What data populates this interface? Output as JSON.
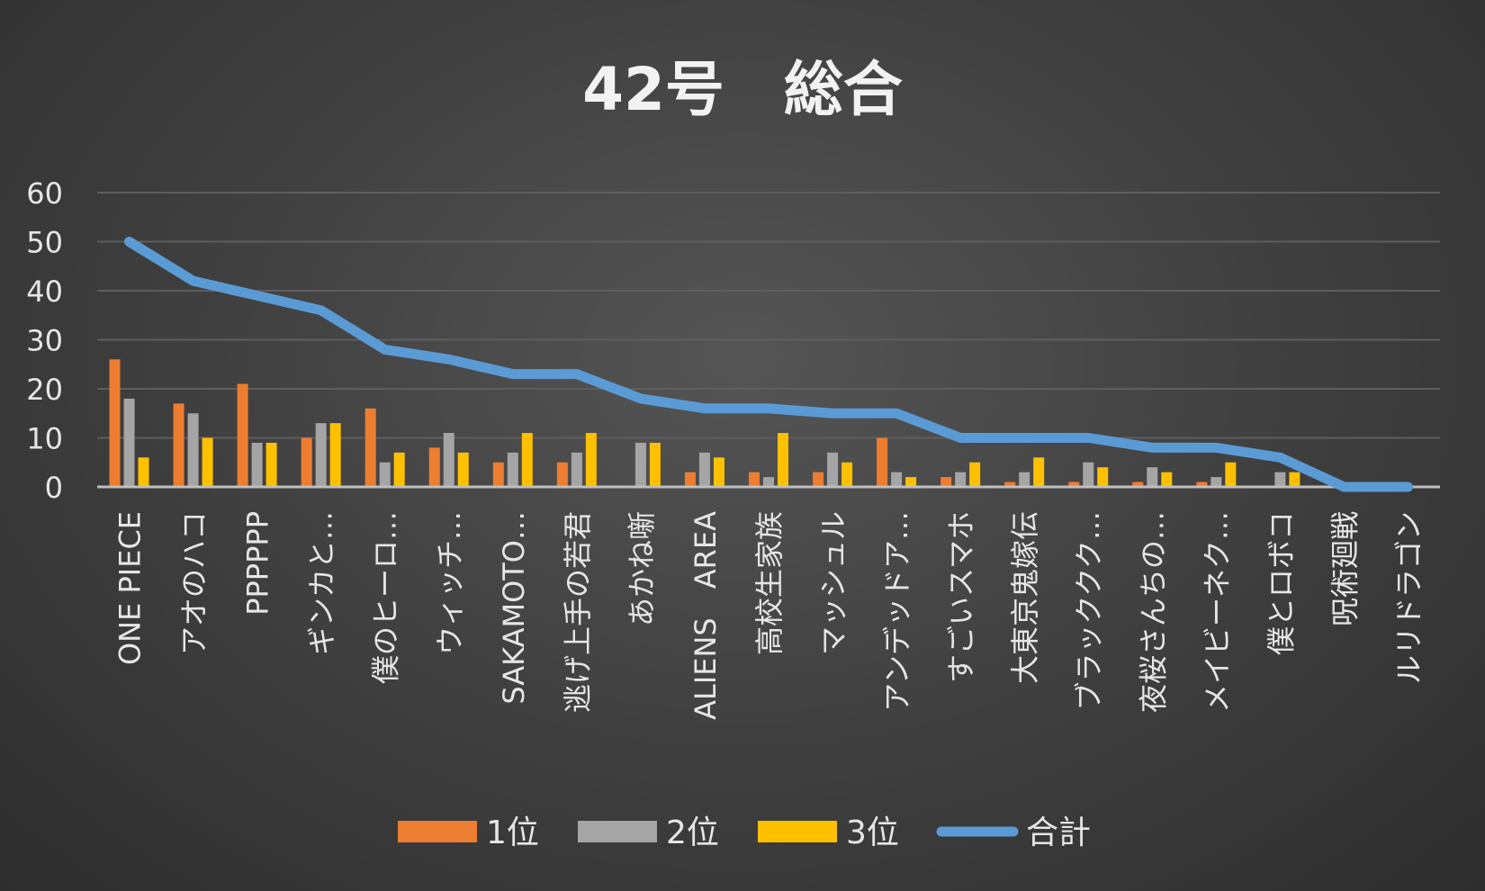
{
  "chart_data": {
    "type": "bar",
    "title": "42号　総合",
    "categories": [
      "ONE PIECE",
      "アオのハコ",
      "PPPPPP",
      "ギンカと…",
      "僕のヒーロ…",
      "ウィッチ…",
      "SAKAMOTO…",
      "逃げ上手の若君",
      "あかね噺",
      "ALIENS　AREA",
      "高校生家族",
      "マッシュル",
      "アンデッドア…",
      "すごいスマホ",
      "大東京鬼嫁伝",
      "ブラッククク…",
      "夜桜さんちの…",
      "メイビーネク…",
      "僕とロボコ",
      "呪術廻戦",
      "ルリドラゴン"
    ],
    "series": [
      {
        "name": "1位",
        "type": "bar",
        "color": "#ed7d31",
        "values": [
          26,
          17,
          21,
          10,
          16,
          8,
          5,
          5,
          0,
          3,
          3,
          3,
          10,
          2,
          1,
          1,
          1,
          1,
          0,
          0,
          0
        ]
      },
      {
        "name": "2位",
        "type": "bar",
        "color": "#a5a5a5",
        "values": [
          18,
          15,
          9,
          13,
          5,
          11,
          7,
          7,
          9,
          7,
          2,
          7,
          3,
          3,
          3,
          5,
          4,
          2,
          3,
          0,
          0
        ]
      },
      {
        "name": "3位",
        "type": "bar",
        "color": "#ffc000",
        "values": [
          6,
          10,
          9,
          13,
          7,
          7,
          11,
          11,
          9,
          6,
          11,
          5,
          2,
          5,
          6,
          4,
          3,
          5,
          3,
          0,
          0
        ]
      },
      {
        "name": "合計",
        "type": "line",
        "color": "#5b9bd5",
        "values": [
          50,
          42,
          39,
          36,
          28,
          26,
          23,
          23,
          18,
          16,
          16,
          15,
          15,
          10,
          10,
          10,
          8,
          8,
          6,
          0,
          0
        ]
      }
    ],
    "yticks": [
      "0",
      "10",
      "20",
      "30",
      "40",
      "50",
      "60"
    ],
    "ylim": [
      0,
      60
    ],
    "grid": true,
    "legend_position": "bottom"
  }
}
